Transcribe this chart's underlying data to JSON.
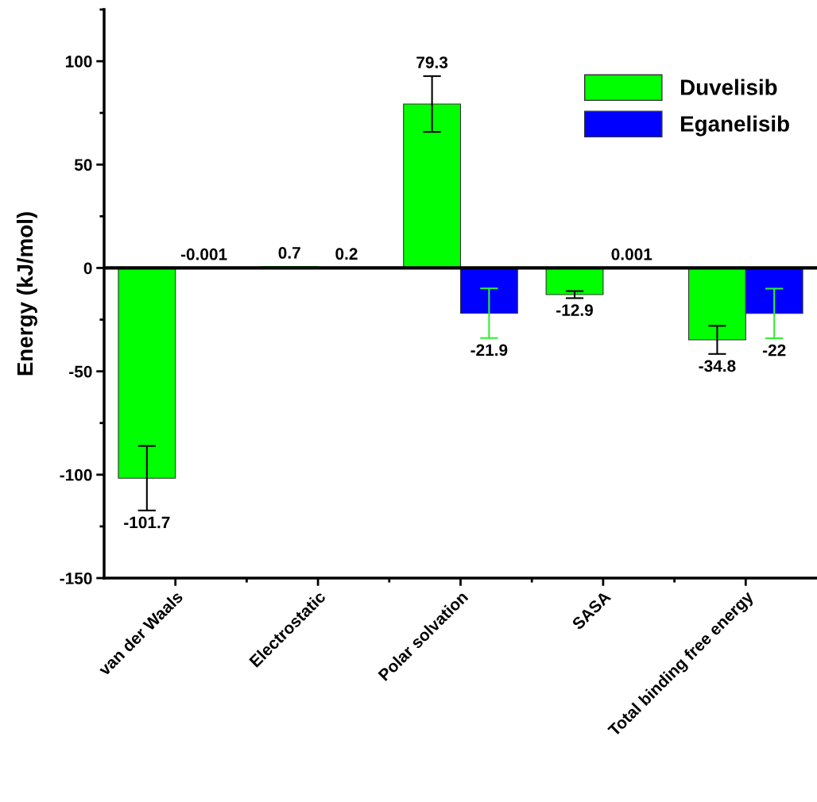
{
  "chart_data": {
    "type": "bar",
    "ylabel": "Energy (kJ/mol)",
    "categories": [
      "van der Waals",
      "Electrostatic",
      "Polar solvation",
      "SASA",
      "Total binding free energy"
    ],
    "series": [
      {
        "name": "Duvelisib",
        "color": "#00ff00",
        "values": [
          -101.7,
          0.7,
          79.3,
          -12.9,
          -34.8
        ],
        "errors": [
          15.6,
          null,
          13.5,
          1.7,
          6.8
        ]
      },
      {
        "name": "Eganelisib",
        "color": "#0000ff",
        "values": [
          -0.001,
          0.2,
          -21.9,
          0.001,
          -22
        ],
        "errors": [
          null,
          null,
          12,
          null,
          12
        ]
      }
    ],
    "ylim": [
      -150,
      125
    ],
    "yticks": [
      -150,
      -100,
      -50,
      0,
      50,
      100
    ],
    "ref_lines": [
      {
        "axis": "y",
        "value": 0,
        "color": "#000000"
      }
    ],
    "data_labels": true,
    "legend": "top right",
    "grid": false
  }
}
